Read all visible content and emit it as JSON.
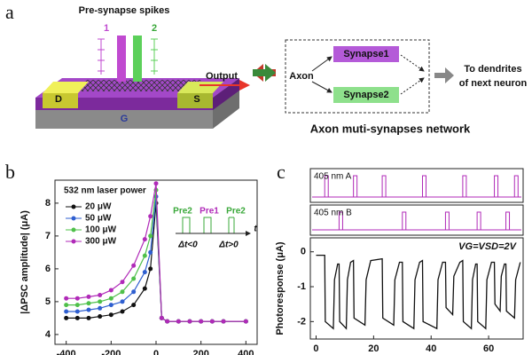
{
  "panel_labels": [
    "a",
    "b",
    "c"
  ],
  "diagram": {
    "title": "Pre-synapse spikes",
    "spike_labels": [
      "1",
      "2"
    ],
    "output": "Output",
    "electrodes": {
      "drain": "D",
      "source": "S",
      "gate": "G"
    },
    "network": {
      "axon": "Axon",
      "synapses": [
        "Synapse1",
        "Synapse2"
      ],
      "target": [
        "To dendrites",
        "of next neuron"
      ],
      "caption": "Axon muti-synapses network"
    }
  },
  "chart_data": [
    {
      "type": "line",
      "legend_title": "532 nm laser power",
      "ylabel": "|ΔPSC amplitude| (μA)",
      "x": [
        -400,
        -350,
        -300,
        -250,
        -200,
        -150,
        -100,
        -50,
        -25,
        0,
        25,
        50,
        100,
        150,
        200,
        250,
        300,
        400
      ],
      "series": [
        {
          "name": "20 μW",
          "color": "#111111",
          "values": [
            4.5,
            4.5,
            4.5,
            4.55,
            4.6,
            4.7,
            4.9,
            5.4,
            6.0,
            8.0,
            4.5,
            4.4,
            4.4,
            4.4,
            4.4,
            4.4,
            4.4,
            4.4
          ]
        },
        {
          "name": "50 μW",
          "color": "#2f5fd0",
          "values": [
            4.7,
            4.7,
            4.75,
            4.8,
            4.9,
            5.0,
            5.3,
            5.9,
            6.5,
            8.2,
            4.5,
            4.4,
            4.4,
            4.4,
            4.4,
            4.4,
            4.4,
            4.4
          ]
        },
        {
          "name": "100 μW",
          "color": "#4fc04a",
          "values": [
            4.9,
            4.9,
            4.95,
            5.0,
            5.1,
            5.3,
            5.7,
            6.4,
            7.0,
            8.4,
            4.5,
            4.4,
            4.4,
            4.4,
            4.4,
            4.4,
            4.4,
            4.4
          ]
        },
        {
          "name": "300 μW",
          "color": "#b02ab8",
          "values": [
            5.1,
            5.1,
            5.15,
            5.2,
            5.35,
            5.6,
            6.1,
            6.9,
            7.6,
            8.6,
            4.5,
            4.4,
            4.4,
            4.4,
            4.4,
            4.4,
            4.4,
            4.4
          ]
        }
      ],
      "xlim": [
        -450,
        450
      ],
      "xticks": [
        -400,
        -200,
        0,
        200,
        400
      ],
      "ylim": [
        3.7,
        8.7
      ],
      "yticks": [
        4,
        5,
        6,
        7,
        8
      ],
      "inset_labels": [
        "Pre2",
        "Pre1",
        "Pre2",
        "Δt<0",
        "Δt>0",
        "t"
      ]
    },
    {
      "type": "pulse",
      "title": "405 nm  A",
      "color": "#b02ab8",
      "x": [
        3,
        13,
        23,
        37,
        51,
        62,
        69
      ],
      "xlim": [
        -2,
        72
      ]
    },
    {
      "type": "pulse",
      "title": "405 nm  B",
      "color": "#b02ab8",
      "x": [
        8,
        30,
        45,
        56,
        66
      ],
      "xlim": [
        -2,
        72
      ]
    },
    {
      "type": "line",
      "ylabel": "Photoresponse (μA)",
      "annotation": "VG=VSD=2V",
      "x": [
        0,
        3,
        3.2,
        6,
        6.4,
        7.5,
        8,
        8.2,
        10.5,
        10.9,
        12,
        13,
        13.2,
        17,
        17.4,
        19,
        23,
        23.2,
        27,
        27.4,
        29,
        30,
        30.2,
        34,
        34.4,
        36,
        37,
        37.2,
        42,
        42.4,
        44,
        45,
        45.2,
        47.5,
        47.9,
        50,
        51,
        51.2,
        54,
        54.4,
        55.5,
        56,
        56.2,
        59,
        59.4,
        61,
        62,
        62.2,
        64,
        64.4,
        65.5,
        66,
        66.2,
        69,
        69.4,
        71
      ],
      "series": [
        {
          "color": "#111111",
          "values": [
            -0.1,
            -0.1,
            -2.0,
            -2.2,
            -0.8,
            -0.35,
            -0.35,
            -2.0,
            -2.2,
            -0.8,
            -0.3,
            -0.25,
            -1.9,
            -2.1,
            -0.8,
            -0.25,
            -0.2,
            -1.9,
            -2.1,
            -0.8,
            -0.3,
            -0.3,
            -2.0,
            -2.2,
            -0.8,
            -0.3,
            -0.25,
            -2.0,
            -2.2,
            -0.8,
            -0.3,
            -0.3,
            -1.6,
            -1.8,
            -0.7,
            -0.3,
            -0.25,
            -2.0,
            -2.2,
            -0.8,
            -0.35,
            -0.35,
            -2.0,
            -2.2,
            -0.8,
            -0.3,
            -0.3,
            -1.5,
            -1.7,
            -0.7,
            -0.35,
            -0.35,
            -1.7,
            -1.9,
            -0.8,
            -0.3
          ]
        }
      ],
      "xlim": [
        -2,
        72
      ],
      "xticks": [
        0,
        20,
        40,
        60
      ],
      "ylim": [
        -2.5,
        0.4
      ],
      "yticks": [
        0,
        -1,
        -2
      ]
    }
  ]
}
